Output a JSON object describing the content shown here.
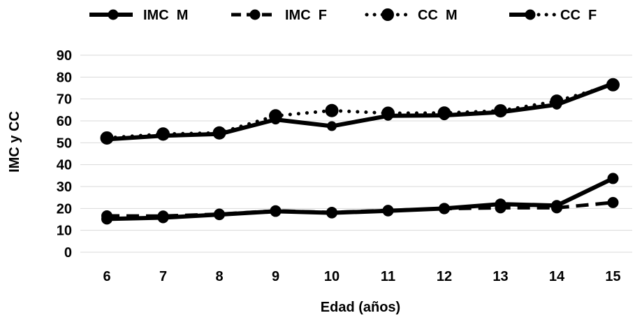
{
  "chart_data": {
    "type": "line",
    "x": [
      6,
      7,
      8,
      9,
      10,
      11,
      12,
      13,
      14,
      15
    ],
    "xlabel": "Edad (años)",
    "ylabel": "IMC y CC",
    "ylim": [
      0,
      90
    ],
    "yticks": [
      0,
      10,
      20,
      30,
      40,
      50,
      60,
      70,
      80,
      90
    ],
    "grid": true,
    "legend_position": "top",
    "series": [
      {
        "name": "IMC  M",
        "style": "solid",
        "marker": "circle",
        "color": "#000000",
        "values": [
          15.2,
          15.8,
          17.2,
          18.7,
          18.0,
          18.9,
          20.0,
          22.0,
          21.3,
          33.7
        ]
      },
      {
        "name": "IMC  F",
        "style": "dashed",
        "marker": "circle",
        "color": "#000000",
        "values": [
          16.6,
          16.5,
          17.4,
          18.9,
          18.2,
          19.1,
          19.9,
          20.3,
          20.3,
          22.7
        ]
      },
      {
        "name": "CC  M",
        "style": "dotted",
        "marker": "circle",
        "color": "#000000",
        "values": [
          52.2,
          54.0,
          54.5,
          62.3,
          64.7,
          63.5,
          63.6,
          64.6,
          69.0,
          76.5
        ]
      },
      {
        "name": "CC  F",
        "style": "solid-dotted",
        "marker": "circle",
        "color": "#000000",
        "values": [
          51.6,
          53.2,
          54.0,
          60.6,
          57.6,
          62.3,
          62.5,
          64.0,
          67.4,
          77.0
        ]
      }
    ]
  }
}
